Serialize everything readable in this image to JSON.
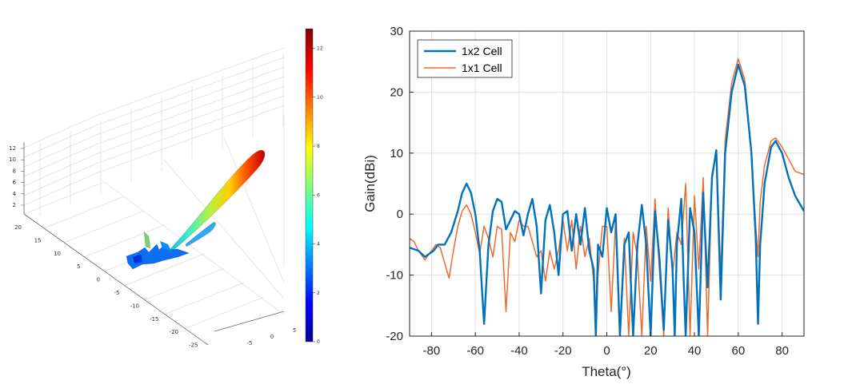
{
  "chart_data": [
    {
      "type": "3d-surface",
      "x_ticks": [
        "-5",
        "0",
        "5"
      ],
      "y_ticks": [
        "20",
        "15",
        "10",
        "5",
        "0",
        "-5",
        "-10",
        "-15",
        "-20",
        "-25"
      ],
      "z_ticks": [
        "12",
        "10",
        "8",
        "6",
        "4",
        "2"
      ],
      "colorbar": {
        "colormap": "jet",
        "ticks": [
          "12",
          "10",
          "8",
          "6",
          "4",
          "2",
          "0"
        ],
        "range": [
          0,
          12.8
        ]
      },
      "grid": true
    },
    {
      "type": "line",
      "xlabel": "Theta(°)",
      "ylabel": "Gain(dBi)",
      "xlim": [
        -90,
        90
      ],
      "ylim": [
        -20,
        30
      ],
      "x_ticks": [
        "-80",
        "-60",
        "-40",
        "-20",
        "0",
        "20",
        "40",
        "60",
        "80"
      ],
      "y_ticks": [
        "30",
        "20",
        "10",
        "0",
        "-10",
        "-20"
      ],
      "grid": true,
      "legend_position": "top-left",
      "series": [
        {
          "name": "1x2 Cell",
          "color": "#0072BD",
          "points": [
            [
              -90,
              -5.5
            ],
            [
              -86,
              -6
            ],
            [
              -83,
              -7
            ],
            [
              -79,
              -6
            ],
            [
              -77,
              -5
            ],
            [
              -74,
              -5
            ],
            [
              -71,
              -3
            ],
            [
              -68,
              0.5
            ],
            [
              -66,
              3.5
            ],
            [
              -64,
              5
            ],
            [
              -62,
              3.5
            ],
            [
              -60,
              0
            ],
            [
              -58,
              -6
            ],
            [
              -56,
              -18
            ],
            [
              -54,
              -5
            ],
            [
              -52,
              0.5
            ],
            [
              -50,
              2.5
            ],
            [
              -48,
              2
            ],
            [
              -46,
              -2.5
            ],
            [
              -44,
              -1
            ],
            [
              -42,
              0.5
            ],
            [
              -40,
              0
            ],
            [
              -38,
              -3.5
            ],
            [
              -36,
              0
            ],
            [
              -34,
              2.5
            ],
            [
              -32,
              -2
            ],
            [
              -30,
              -13
            ],
            [
              -28,
              -1
            ],
            [
              -26,
              1.5
            ],
            [
              -24,
              -3
            ],
            [
              -22,
              -10
            ],
            [
              -20,
              0
            ],
            [
              -18,
              0.5
            ],
            [
              -16,
              -6
            ],
            [
              -14,
              0
            ],
            [
              -12,
              -5
            ],
            [
              -10,
              1
            ],
            [
              -8,
              -6
            ],
            [
              -6,
              -9
            ],
            [
              -5,
              -20
            ],
            [
              -4,
              -5
            ],
            [
              -2,
              -7
            ],
            [
              0,
              1
            ],
            [
              2,
              -3
            ],
            [
              4,
              0
            ],
            [
              6,
              -20
            ],
            [
              8,
              -5
            ],
            [
              10,
              -3
            ],
            [
              12,
              -20
            ],
            [
              14,
              -5
            ],
            [
              16,
              1.5
            ],
            [
              18,
              -5
            ],
            [
              20,
              -20
            ],
            [
              22,
              0.5
            ],
            [
              24,
              -7
            ],
            [
              26,
              -19
            ],
            [
              28,
              -1
            ],
            [
              30,
              -9
            ],
            [
              31,
              -20
            ],
            [
              32,
              -5
            ],
            [
              34,
              2.5
            ],
            [
              35,
              -10
            ],
            [
              36,
              -20
            ],
            [
              38,
              1
            ],
            [
              40,
              -3
            ],
            [
              42,
              -20
            ],
            [
              44,
              3.5
            ],
            [
              46,
              -12
            ],
            [
              48,
              6
            ],
            [
              50,
              10.5
            ],
            [
              52,
              -14
            ],
            [
              54,
              10
            ],
            [
              57,
              20
            ],
            [
              60,
              24.5
            ],
            [
              63,
              21
            ],
            [
              66,
              10
            ],
            [
              68,
              -4
            ],
            [
              69,
              -18
            ],
            [
              70,
              -5
            ],
            [
              72,
              5
            ],
            [
              75,
              11
            ],
            [
              77,
              12
            ],
            [
              80,
              10
            ],
            [
              83,
              6
            ],
            [
              86,
              3
            ],
            [
              90,
              0.5
            ]
          ]
        },
        {
          "name": "1x1 Cell",
          "color": "#EE6A2D",
          "points": [
            [
              -90,
              -4
            ],
            [
              -88,
              -4.5
            ],
            [
              -86,
              -6
            ],
            [
              -83,
              -7.5
            ],
            [
              -80,
              -6
            ],
            [
              -78,
              -5
            ],
            [
              -76,
              -5.5
            ],
            [
              -74,
              -8
            ],
            [
              -72,
              -10.5
            ],
            [
              -70,
              -6
            ],
            [
              -68,
              -2
            ],
            [
              -66,
              0.5
            ],
            [
              -64,
              1.5
            ],
            [
              -62,
              0
            ],
            [
              -60,
              -3
            ],
            [
              -58,
              -6.5
            ],
            [
              -56,
              -2
            ],
            [
              -54,
              -4
            ],
            [
              -52,
              -7
            ],
            [
              -50,
              -2
            ],
            [
              -48,
              -2.5
            ],
            [
              -46,
              -16
            ],
            [
              -44,
              -3
            ],
            [
              -42,
              -4.5
            ],
            [
              -40,
              -1
            ],
            [
              -38,
              -2
            ],
            [
              -36,
              -2
            ],
            [
              -34,
              -4.5
            ],
            [
              -32,
              -7
            ],
            [
              -30,
              -6
            ],
            [
              -28,
              -11
            ],
            [
              -26,
              -6
            ],
            [
              -24,
              -9
            ],
            [
              -22,
              -6
            ],
            [
              -20,
              -1
            ],
            [
              -18,
              -6
            ],
            [
              -16,
              -1
            ],
            [
              -14,
              -9
            ],
            [
              -12,
              -2
            ],
            [
              -10,
              -7
            ],
            [
              -8,
              -4
            ],
            [
              -6,
              -11
            ],
            [
              -5,
              -20
            ],
            [
              -4,
              -10
            ],
            [
              -2,
              -2
            ],
            [
              0,
              -2
            ],
            [
              2,
              -16
            ],
            [
              4,
              -1
            ],
            [
              6,
              -20
            ],
            [
              8,
              -4
            ],
            [
              10,
              -20
            ],
            [
              12,
              -3
            ],
            [
              14,
              -7
            ],
            [
              16,
              -20
            ],
            [
              18,
              -2
            ],
            [
              20,
              -11
            ],
            [
              22,
              2.5
            ],
            [
              24,
              -9
            ],
            [
              26,
              -20
            ],
            [
              28,
              1
            ],
            [
              30,
              -10
            ],
            [
              32,
              -3
            ],
            [
              34,
              -5
            ],
            [
              36,
              5
            ],
            [
              38,
              -20
            ],
            [
              40,
              3
            ],
            [
              42,
              -9
            ],
            [
              44,
              6
            ],
            [
              46,
              -20
            ],
            [
              48,
              6.5
            ],
            [
              50,
              10.5
            ],
            [
              52,
              -10
            ],
            [
              54,
              12
            ],
            [
              57,
              21.5
            ],
            [
              60,
              25.5
            ],
            [
              63,
              22
            ],
            [
              66,
              10
            ],
            [
              68,
              -2
            ],
            [
              69,
              -7
            ],
            [
              70,
              2
            ],
            [
              72,
              8
            ],
            [
              75,
              12
            ],
            [
              77,
              12.5
            ],
            [
              80,
              11
            ],
            [
              83,
              9
            ],
            [
              86,
              7
            ],
            [
              90,
              6.5
            ]
          ]
        }
      ]
    }
  ]
}
